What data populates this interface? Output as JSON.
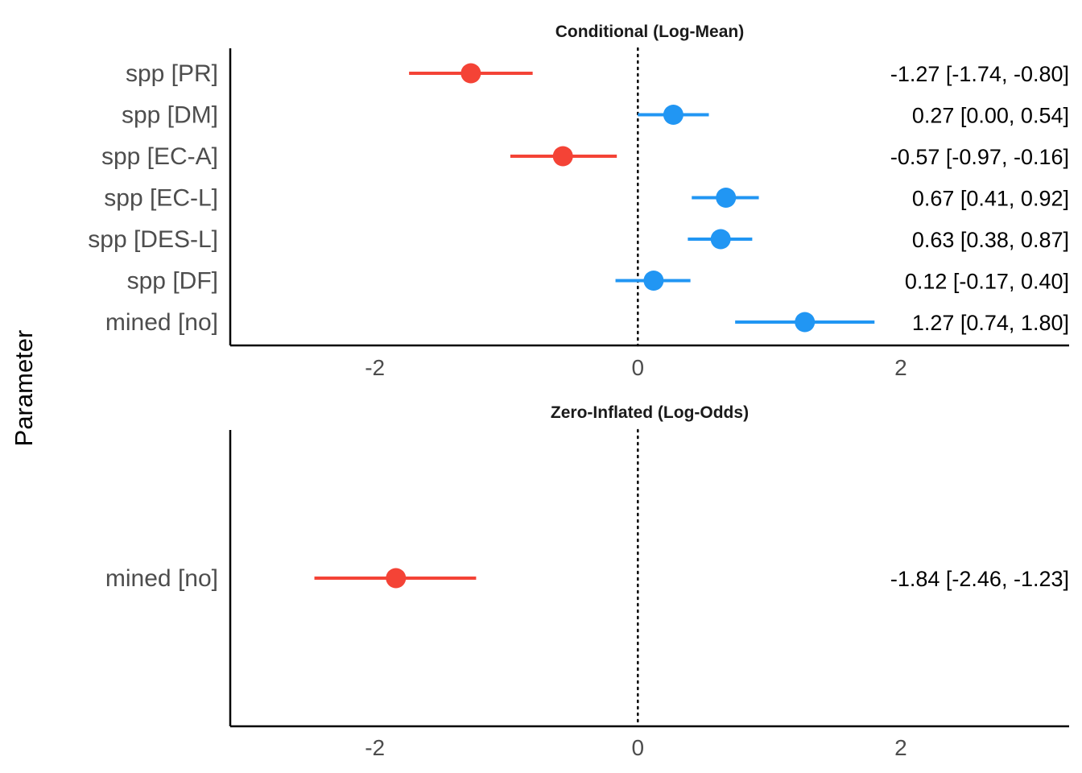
{
  "axis_title_y": "Parameter",
  "colors": {
    "negative": "#f44336",
    "positive": "#2196f3",
    "axis": "#000000"
  },
  "chart_data": [
    {
      "type": "scatter",
      "subtype": "forest",
      "title": "Conditional (Log-Mean)",
      "ylabel": "Parameter",
      "xlim": [
        -3.1,
        3.28
      ],
      "xticks": [
        -2,
        0,
        2
      ],
      "xtick_labels": [
        "-2",
        "0",
        "2"
      ],
      "reference_line": 0,
      "parameters": [
        {
          "label": "spp [PR]",
          "estimate": -1.27,
          "ci_low": -1.74,
          "ci_high": -0.8,
          "text": "-1.27 [-1.74, -0.80]"
        },
        {
          "label": "spp [DM]",
          "estimate": 0.27,
          "ci_low": 0.0,
          "ci_high": 0.54,
          "text": "0.27 [0.00, 0.54]"
        },
        {
          "label": "spp [EC-A]",
          "estimate": -0.57,
          "ci_low": -0.97,
          "ci_high": -0.16,
          "text": "-0.57 [-0.97, -0.16]"
        },
        {
          "label": "spp [EC-L]",
          "estimate": 0.67,
          "ci_low": 0.41,
          "ci_high": 0.92,
          "text": "0.67 [0.41, 0.92]"
        },
        {
          "label": "spp [DES-L]",
          "estimate": 0.63,
          "ci_low": 0.38,
          "ci_high": 0.87,
          "text": "0.63 [0.38, 0.87]"
        },
        {
          "label": "spp [DF]",
          "estimate": 0.12,
          "ci_low": -0.17,
          "ci_high": 0.4,
          "text": "0.12 [-0.17, 0.40]"
        },
        {
          "label": "mined [no]",
          "estimate": 1.27,
          "ci_low": 0.74,
          "ci_high": 1.8,
          "text": "1.27 [0.74, 1.80]"
        }
      ]
    },
    {
      "type": "scatter",
      "subtype": "forest",
      "title": "Zero-Inflated (Log-Odds)",
      "ylabel": "Parameter",
      "xlim": [
        -3.1,
        3.28
      ],
      "xticks": [
        -2,
        0,
        2
      ],
      "xtick_labels": [
        "-2",
        "0",
        "2"
      ],
      "reference_line": 0,
      "parameters": [
        {
          "label": "mined [no]",
          "estimate": -1.84,
          "ci_low": -2.46,
          "ci_high": -1.23,
          "text": "-1.84 [-2.46, -1.23]"
        }
      ]
    }
  ]
}
